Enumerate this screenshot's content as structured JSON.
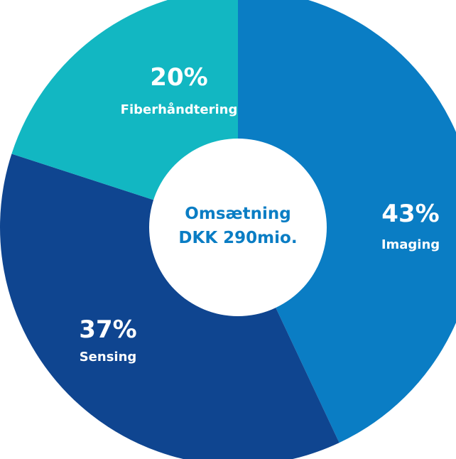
{
  "chart_data": {
    "type": "pie",
    "variant": "donut",
    "center_label": [
      "Omsætning",
      "DKK 290mio."
    ],
    "slices": [
      {
        "label": "Imaging",
        "value": 43,
        "display": "43%",
        "color": "#0a7dc4"
      },
      {
        "label": "Sensing",
        "value": 37,
        "display": "37%",
        "color": "#0f4590"
      },
      {
        "label": "Fiberhåndtering",
        "value": 20,
        "display": "20%",
        "color": "#12b7c2"
      }
    ],
    "start": "12 o'clock",
    "direction": "clockwise",
    "legend": "none"
  },
  "colors": {
    "center_text": "#0a7dc4",
    "center_fill": "#ffffff",
    "background": "#ffffff"
  }
}
